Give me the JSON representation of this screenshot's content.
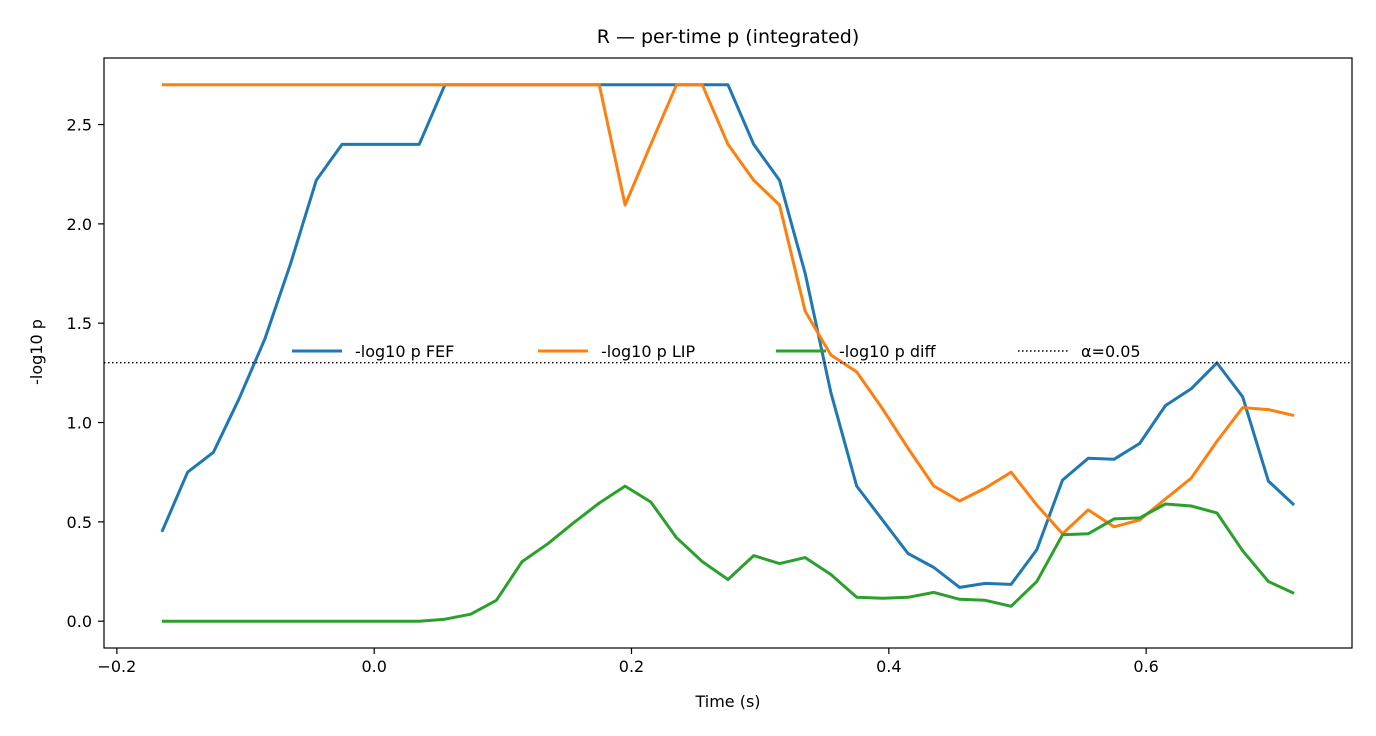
{
  "chart_data": {
    "type": "line",
    "title": "R — per-time p (integrated)",
    "xlabel": "Time (s)",
    "ylabel": "-log10 p",
    "xlim": [
      -0.21,
      0.76
    ],
    "ylim": [
      -0.135,
      2.835
    ],
    "xticks": [
      -0.2,
      0.0,
      0.2,
      0.4,
      0.6
    ],
    "xtick_labels": [
      "−0.2",
      "0.0",
      "0.2",
      "0.4",
      "0.6"
    ],
    "yticks": [
      0.0,
      0.5,
      1.0,
      1.5,
      2.0,
      2.5
    ],
    "ytick_labels": [
      "0.0",
      "0.5",
      "1.0",
      "1.5",
      "2.0",
      "2.5"
    ],
    "grid": false,
    "legend_position": "center",
    "x": [
      -0.165,
      -0.145,
      -0.125,
      -0.105,
      -0.085,
      -0.065,
      -0.045,
      -0.025,
      -0.005,
      0.015,
      0.035,
      0.055,
      0.075,
      0.095,
      0.115,
      0.135,
      0.155,
      0.175,
      0.195,
      0.215,
      0.235,
      0.255,
      0.275,
      0.295,
      0.315,
      0.335,
      0.355,
      0.375,
      0.395,
      0.415,
      0.435,
      0.455,
      0.475,
      0.495,
      0.515,
      0.535,
      0.555,
      0.575,
      0.595,
      0.615,
      0.635,
      0.655,
      0.675,
      0.695,
      0.715
    ],
    "series": [
      {
        "name": "-log10 p FEF",
        "color": "#1f77b4",
        "values": [
          0.45,
          0.75,
          0.85,
          1.12,
          1.42,
          1.8,
          2.22,
          2.4,
          2.4,
          2.4,
          2.4,
          2.7,
          2.7,
          2.7,
          2.7,
          2.7,
          2.7,
          2.7,
          2.7,
          2.7,
          2.7,
          2.7,
          2.7,
          2.4,
          2.22,
          1.75,
          1.15,
          0.68,
          0.51,
          0.34,
          0.27,
          0.17,
          0.19,
          0.185,
          0.36,
          0.71,
          0.82,
          0.815,
          0.895,
          1.085,
          1.17,
          1.3,
          1.13,
          0.705,
          0.585
        ]
      },
      {
        "name": "-log10 p LIP",
        "color": "#ff7f0e",
        "values": [
          2.7,
          2.7,
          2.7,
          2.7,
          2.7,
          2.7,
          2.7,
          2.7,
          2.7,
          2.7,
          2.7,
          2.7,
          2.7,
          2.7,
          2.7,
          2.7,
          2.7,
          2.7,
          2.095,
          2.4,
          2.7,
          2.7,
          2.4,
          2.22,
          2.095,
          1.56,
          1.34,
          1.255,
          1.07,
          0.87,
          0.68,
          0.605,
          0.67,
          0.75,
          0.585,
          0.44,
          0.56,
          0.475,
          0.51,
          0.615,
          0.72,
          0.905,
          1.075,
          1.065,
          1.035
        ]
      },
      {
        "name": "-log10 p diff",
        "color": "#2ca02c",
        "values": [
          0.0,
          0.0,
          0.0,
          0.0,
          0.0,
          0.0,
          0.0,
          0.0,
          0.0,
          0.0,
          0.0,
          0.01,
          0.035,
          0.105,
          0.3,
          0.39,
          0.495,
          0.595,
          0.68,
          0.6,
          0.42,
          0.3,
          0.21,
          0.33,
          0.29,
          0.32,
          0.235,
          0.12,
          0.115,
          0.12,
          0.145,
          0.11,
          0.105,
          0.075,
          0.2,
          0.435,
          0.44,
          0.515,
          0.52,
          0.59,
          0.58,
          0.545,
          0.355,
          0.2,
          0.14
        ]
      }
    ],
    "hlines": [
      {
        "name": "α=0.05",
        "y": 1.30103,
        "color": "#000000",
        "style": "dotted"
      }
    ]
  }
}
